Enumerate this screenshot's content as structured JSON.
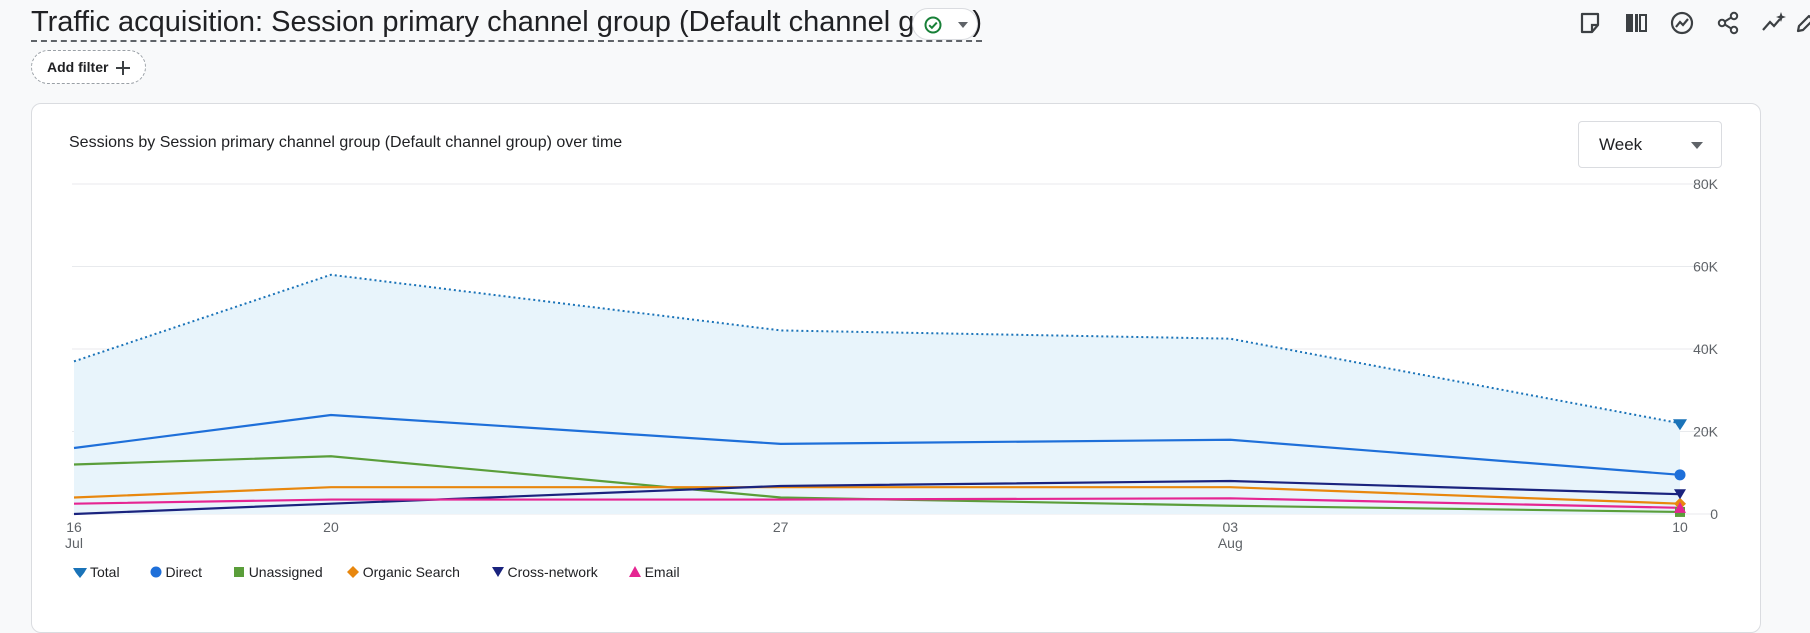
{
  "header": {
    "title": "Traffic acquisition: Session primary channel group (Default channel group)",
    "status_icon": "check-circle-icon",
    "status_color": "#188038",
    "add_filter_label": "Add filter",
    "toolbar": [
      "note-icon",
      "compare-icon",
      "insights-icon",
      "share-icon",
      "anomaly-icon",
      "edit-icon"
    ]
  },
  "card": {
    "title": "Sessions by Session primary channel group (Default channel group) over time",
    "granularity": "Week"
  },
  "chart_data": {
    "type": "line",
    "x": [
      "16 Jul",
      "20",
      "27",
      "03 Aug",
      "10"
    ],
    "x_days": [
      16,
      20,
      27,
      34,
      41
    ],
    "x_tick_labels": [
      [
        "16",
        "Jul"
      ],
      [
        "20"
      ],
      [
        "27"
      ],
      [
        "03",
        "Aug"
      ],
      [
        "10"
      ]
    ],
    "y_ticks": [
      "80K",
      "60K",
      "40K",
      "20K",
      "0"
    ],
    "y_tick_values": [
      80000,
      60000,
      40000,
      20000,
      0
    ],
    "ylim": [
      0,
      80000
    ],
    "grid": true,
    "legend_position": "bottom-left",
    "series": [
      {
        "name": "Total",
        "color": "#1a73b8",
        "marker": "drop",
        "style": "dotted-area",
        "values": [
          37000,
          58000,
          44500,
          42500,
          22000
        ]
      },
      {
        "name": "Direct",
        "color": "#1e6fd9",
        "marker": "circle",
        "values": [
          16000,
          24000,
          17000,
          18000,
          9500
        ]
      },
      {
        "name": "Unassigned",
        "color": "#5a9e3a",
        "marker": "square",
        "values": [
          12000,
          14000,
          4000,
          2000,
          500
        ]
      },
      {
        "name": "Organic Search",
        "color": "#e8870e",
        "marker": "diamond",
        "values": [
          4000,
          6500,
          6500,
          6500,
          2500
        ]
      },
      {
        "name": "Cross-network",
        "color": "#1a237e",
        "marker": "triangle-down",
        "values": [
          0,
          2500,
          6800,
          8000,
          4800
        ]
      },
      {
        "name": "Email",
        "color": "#e52592",
        "marker": "triangle-up",
        "values": [
          2500,
          3500,
          3500,
          3800,
          1500
        ]
      }
    ]
  }
}
